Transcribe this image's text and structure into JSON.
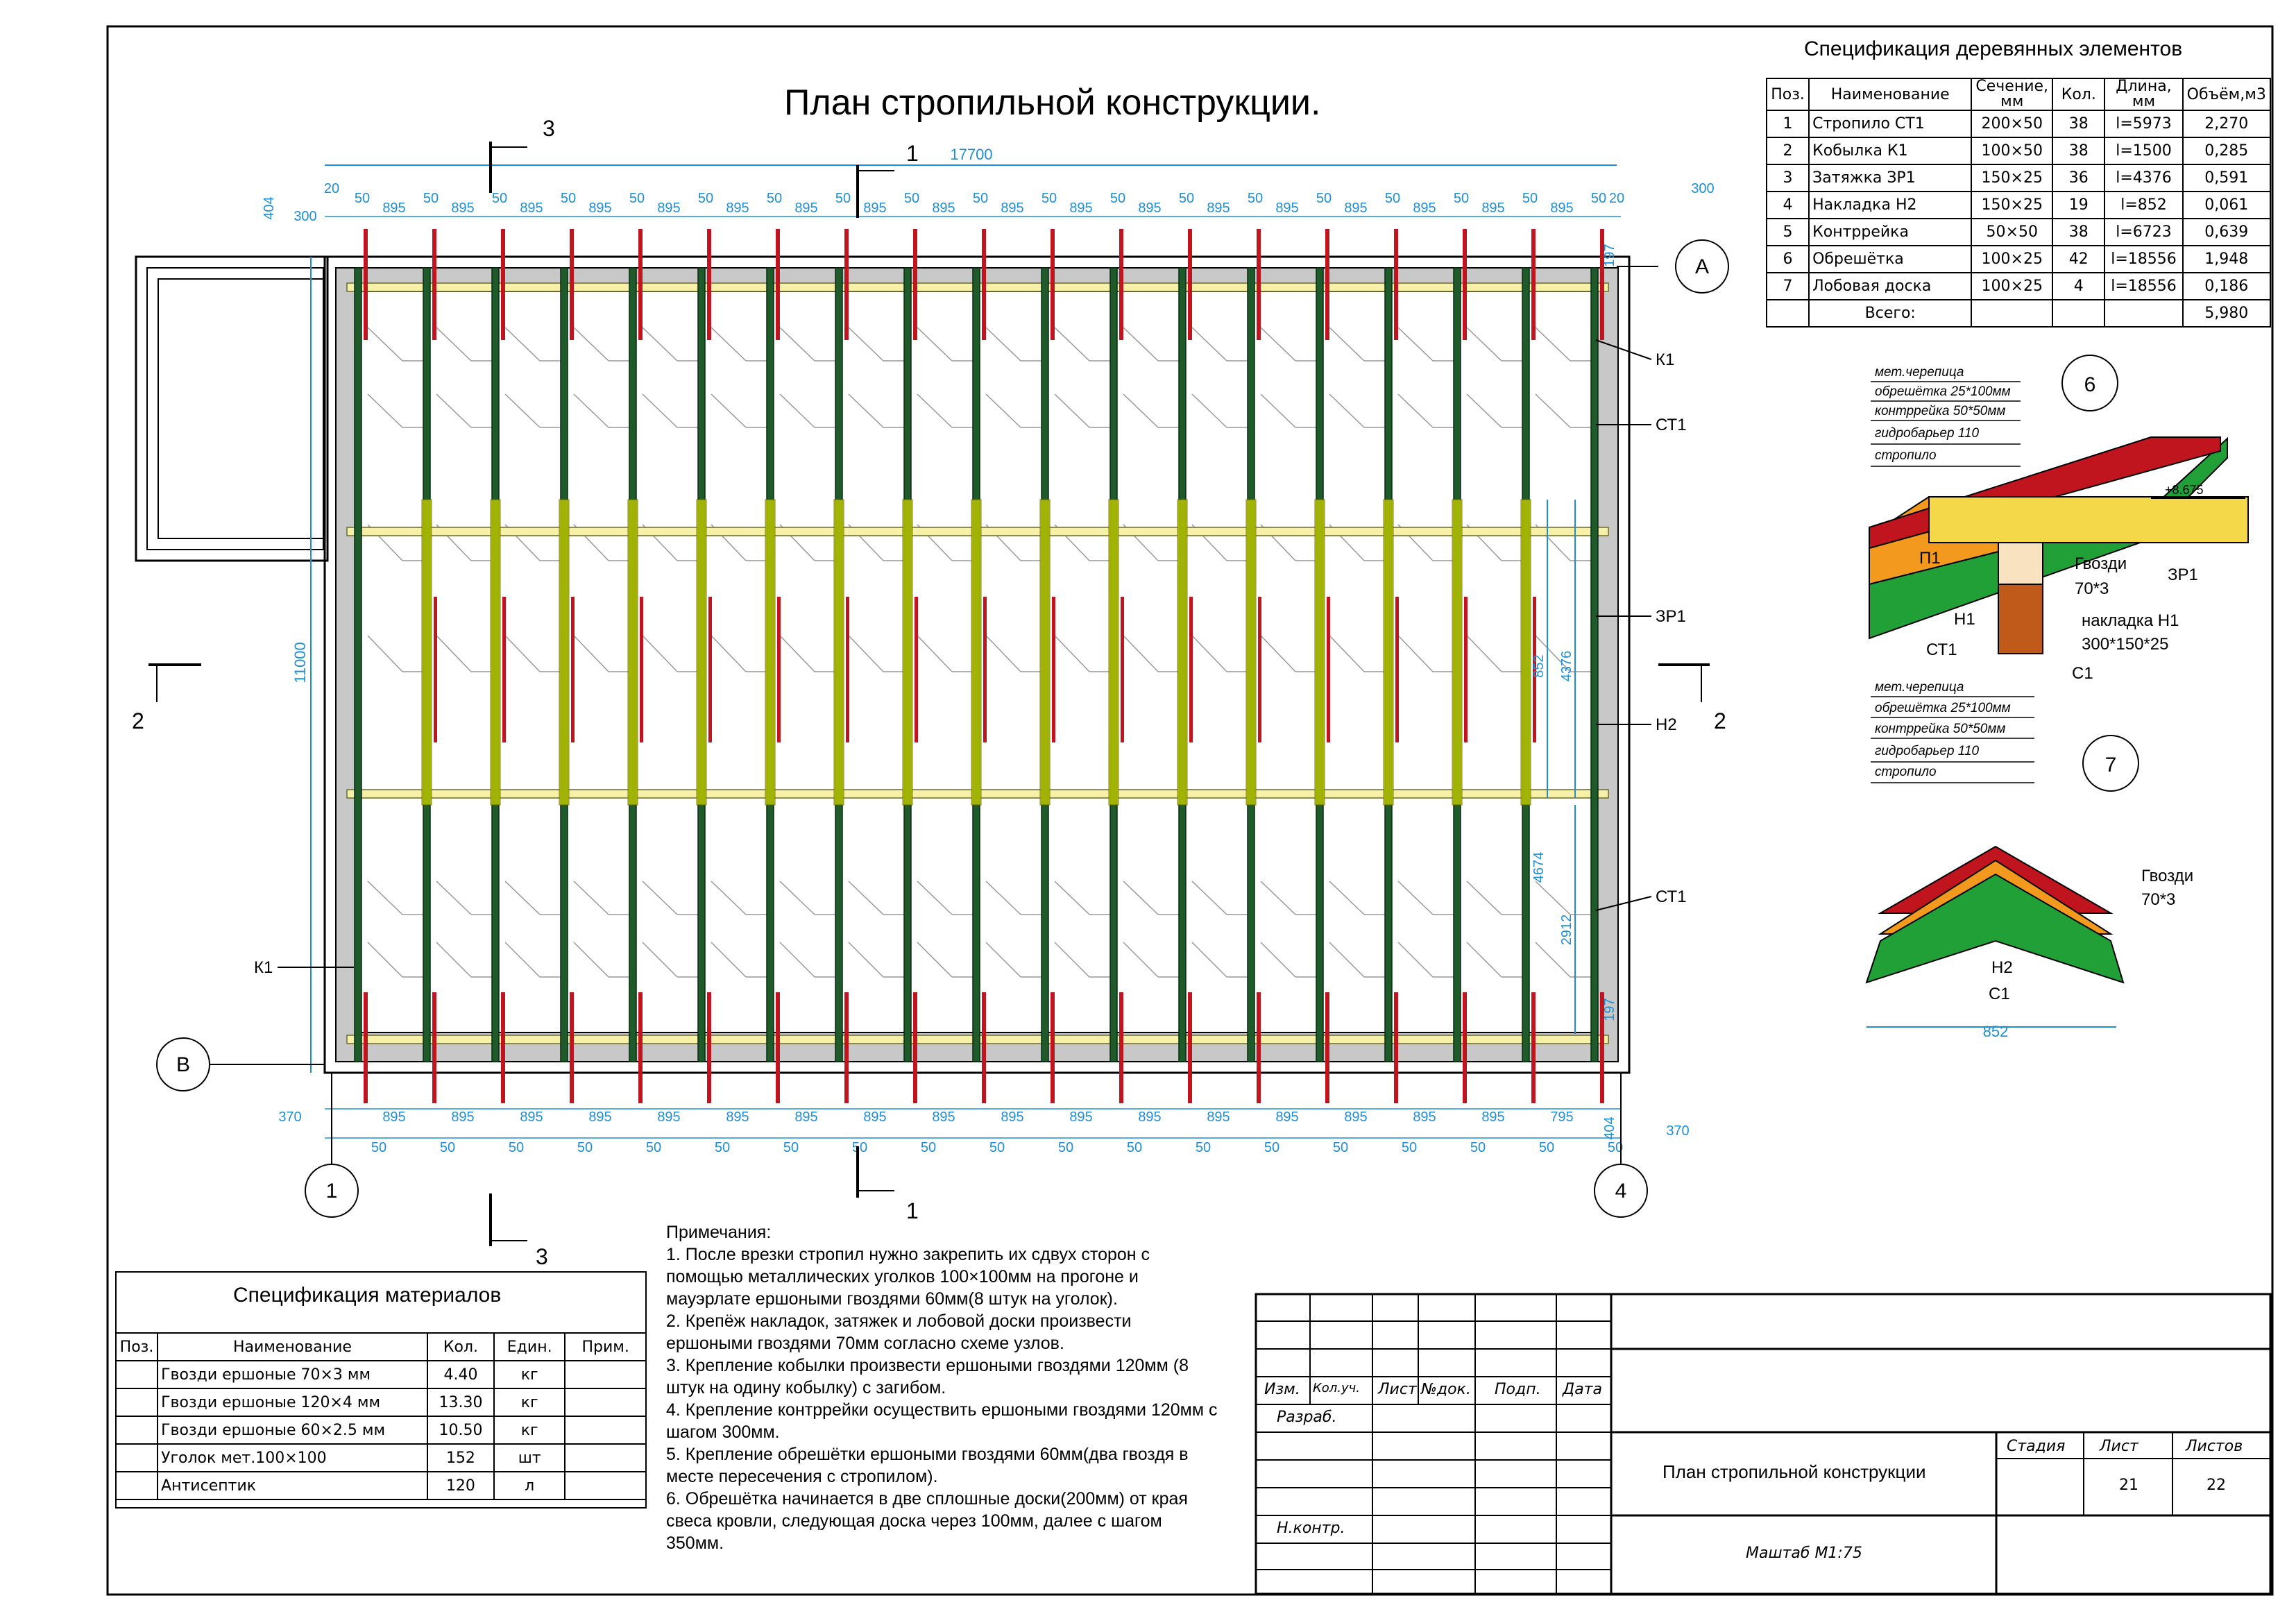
{
  "plan_title": "План стропильной конструкции.",
  "dims": {
    "total_width": "17700",
    "total_height": "11000",
    "span_label": "895",
    "last_span_label": "795",
    "gap_label": "50",
    "overhang_300": "300",
    "overhang_370": "370",
    "edge_20": "20",
    "edge_404": "404",
    "edge_197": "197",
    "d852": "852",
    "d4376": "4376",
    "d4674": "4674",
    "d2912": "2912",
    "d852b": "852",
    "mark_8675": "+8.675"
  },
  "axes": {
    "a": "A",
    "b": "B",
    "one": "1",
    "four": "4"
  },
  "sections": {
    "s1": "1",
    "s2": "2",
    "s3": "3"
  },
  "element_labels": {
    "k1_top": "К1",
    "st1_top": "СТ1",
    "zr1": "ЗР1",
    "n2": "Н2",
    "st1_bot": "СТ1",
    "k1_left": "К1"
  },
  "detail6": {
    "number": "6",
    "layers": [
      "мет.черепица",
      "обрешётка 25*100мм",
      "контррейка 50*50мм",
      "гидробарьер 110",
      "стропило"
    ],
    "p1": "П1",
    "n1": "Н1",
    "st1": "СТ1",
    "c1": "С1",
    "zr1": "ЗР1",
    "nails": "Гвозди",
    "nails_size": "70*3",
    "pad": "накладка Н1",
    "pad_size": "300*150*25",
    "mark": "+8.675"
  },
  "detail7": {
    "number": "7",
    "layers": [
      "мет.черепица",
      "обрешётка 25*100мм",
      "контррейка 50*50мм",
      "гидробарьер 110",
      "стропило"
    ],
    "nails": "Гвозди",
    "nails_size": "70*3",
    "n2": "Н2",
    "c1": "С1",
    "width": "852"
  },
  "wood_spec": {
    "title": "Спецификация деревянных элементов",
    "headers": [
      "Поз.",
      "Наименование",
      "Сечение, мм",
      "Кол.",
      "Длина, мм",
      "Объём,м3"
    ],
    "rows": [
      [
        "1",
        "Стропило СТ1",
        "200×50",
        "38",
        "l=5973",
        "2,270"
      ],
      [
        "2",
        "Кобылка К1",
        "100×50",
        "38",
        "l=1500",
        "0,285"
      ],
      [
        "3",
        "Затяжка ЗР1",
        "150×25",
        "36",
        "l=4376",
        "0,591"
      ],
      [
        "4",
        "Накладка Н2",
        "150×25",
        "19",
        "l=852",
        "0,061"
      ],
      [
        "5",
        "Контррейка",
        "50×50",
        "38",
        "l=6723",
        "0,639"
      ],
      [
        "6",
        "Обрешётка",
        "100×25",
        "42",
        "l=18556",
        "1,948"
      ],
      [
        "7",
        "Лобовая доска",
        "100×25",
        "4",
        "l=18556",
        "0,186"
      ]
    ],
    "total_label": "Всего:",
    "total_value": "5,980"
  },
  "material_spec": {
    "title": "Спецификация материалов",
    "headers": [
      "Поз.",
      "Наименование",
      "Кол.",
      "Един.",
      "Прим."
    ],
    "rows": [
      [
        "",
        "Гвозди ершоные 70×3 мм",
        "4.40",
        "кг",
        ""
      ],
      [
        "",
        "Гвозди ершоные 120×4 мм",
        "13.30",
        "кг",
        ""
      ],
      [
        "",
        "Гвозди ершоные 60×2.5 мм",
        "10.50",
        "кг",
        ""
      ],
      [
        "",
        "Уголок мет.100×100",
        "152",
        "шт",
        ""
      ],
      [
        "",
        "Антисептик",
        "120",
        "л",
        ""
      ]
    ]
  },
  "notes": {
    "title": "Примечания:",
    "items": [
      "1. После врезки стропил нужно закрепить их сдвух сторон с помощью металлических уголков 100×100мм на прогоне и мауэрлате ершоными гвоздями 60мм(8 штук на уголок).",
      "2. Крепёж накладок, затяжек и лобовой доски произвести ершоными гвоздями 70мм согласно схеме узлов.",
      "3. Крепление кобылки произвести ершоными гвоздями 120мм (8 штук на одину кобылку) с загибом.",
      "4. Крепление контррейки осуществить ершоными гвоздями 120мм с шагом 300мм.",
      "5. Крепление обрешётки ершоными гвоздями 60мм(два гвоздя в месте пересечения с стропилом).",
      "6. Обрешётка начинается в две сплошные доски(200мм) от края свеса кровли, следующая доска через 100мм, далее с шагом 350мм."
    ]
  },
  "stamp": {
    "izm": "Изм.",
    "kol": "Кол.уч.",
    "list": "Лист",
    "ndok": "№док.",
    "podp": "Подп.",
    "data": "Дата",
    "razrab": "Разраб.",
    "nkontr": "Н.контр.",
    "title": "План стропильной конструкции",
    "stadia": "Стадия",
    "list2": "Лист",
    "listov": "Листов",
    "sheet_no": "21",
    "sheets": "22",
    "scale": "Маштаб М1:75"
  },
  "colors": {
    "rafter": "#1f5a2a",
    "rafter_outline": "#0b2b12",
    "tie": "#f7f0a8",
    "tie_outline": "#6b6b2a",
    "pad": "#b8c400",
    "dim": "#1e8fd6",
    "wall": "#c8c8c8",
    "red": "#c0141e",
    "green_fill": "#21a038",
    "orange_fill": "#f39a1e",
    "yellow_fill": "#f5d84a",
    "brown": "#c05a1a"
  }
}
